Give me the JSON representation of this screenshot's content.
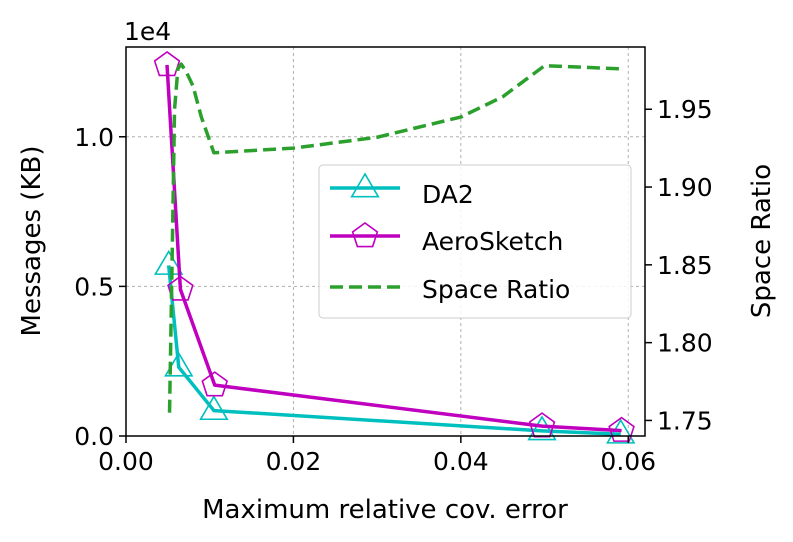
{
  "chart_data": {
    "type": "line",
    "title": "",
    "xlabel": "Maximum relative cov. error",
    "ylabel": "Messages (KB)",
    "y2label": "Space Ratio",
    "offset_text": "1e4",
    "xlim": [
      0.0,
      0.062
    ],
    "ylim": [
      0,
      13000
    ],
    "y2lim": [
      1.74,
      1.99
    ],
    "x_ticks": [
      0.0,
      0.02,
      0.04,
      0.06
    ],
    "x_tick_labels": [
      "0.00",
      "0.02",
      "0.04",
      "0.06"
    ],
    "y_ticks": [
      0,
      5000,
      10000
    ],
    "y_tick_labels": [
      "0.0",
      "0.5",
      "1.0"
    ],
    "y2_ticks": [
      1.75,
      1.8,
      1.85,
      1.9,
      1.95
    ],
    "y2_tick_labels": [
      "1.75",
      "1.80",
      "1.85",
      "1.90",
      "1.95"
    ],
    "grid": true,
    "legend_position": "center-right",
    "series": [
      {
        "name": "DA2",
        "axis": "left",
        "color": "#00bfbf",
        "marker": "triangle-open",
        "linestyle": "solid",
        "x": [
          0.0051,
          0.0063,
          0.0105,
          0.0497,
          0.0591
        ],
        "y": [
          5700,
          2300,
          850,
          170,
          60
        ]
      },
      {
        "name": "AeroSketch",
        "axis": "left",
        "color": "#bf00bf",
        "marker": "pentagon-open",
        "linestyle": "solid",
        "x": [
          0.0049,
          0.0065,
          0.0106,
          0.0497,
          0.0592
        ],
        "y": [
          12400,
          4900,
          1700,
          330,
          180
        ]
      },
      {
        "name": "Space Ratio",
        "axis": "right",
        "color": "#2ca02c",
        "marker": "none",
        "linestyle": "dashed",
        "x": [
          0.0052,
          0.0055,
          0.0058,
          0.0062,
          0.0066,
          0.0072,
          0.008,
          0.009,
          0.0105,
          0.02,
          0.03,
          0.04,
          0.045,
          0.05,
          0.059
        ],
        "y": [
          1.755,
          1.85,
          1.95,
          1.976,
          1.979,
          1.974,
          1.965,
          1.945,
          1.922,
          1.925,
          1.932,
          1.945,
          1.958,
          1.978,
          1.976
        ]
      }
    ]
  }
}
